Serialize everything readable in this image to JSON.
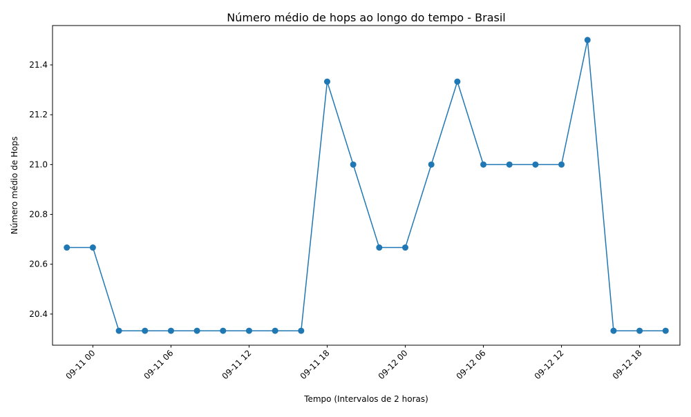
{
  "chart_data": {
    "type": "line",
    "title": "Número médio de hops ao longo do tempo - Brasil",
    "xlabel": "Tempo (Intervalos de 2 horas)",
    "ylabel": "Número médio de Hops",
    "x": [
      "2023-09-10 22:00",
      "2023-09-11 00:00",
      "2023-09-11 02:00",
      "2023-09-11 04:00",
      "2023-09-11 06:00",
      "2023-09-11 08:00",
      "2023-09-11 10:00",
      "2023-09-11 12:00",
      "2023-09-11 14:00",
      "2023-09-11 16:00",
      "2023-09-11 18:00",
      "2023-09-11 20:00",
      "2023-09-11 22:00",
      "2023-09-12 00:00",
      "2023-09-12 02:00",
      "2023-09-12 04:00",
      "2023-09-12 06:00",
      "2023-09-12 08:00",
      "2023-09-12 10:00",
      "2023-09-12 12:00",
      "2023-09-12 14:00",
      "2023-09-12 16:00",
      "2023-09-12 18:00",
      "2023-09-12 20:00"
    ],
    "series": [
      {
        "values": [
          20.667,
          20.667,
          20.333,
          20.333,
          20.333,
          20.333,
          20.333,
          20.333,
          20.333,
          20.333,
          21.333,
          21.0,
          20.667,
          20.667,
          21.0,
          21.333,
          21.0,
          21.0,
          21.0,
          21.0,
          21.5,
          20.333,
          20.333,
          20.333
        ],
        "color": "#1f77b4"
      }
    ],
    "xlim": [
      "2023-09-10 20:54",
      "2023-09-12 21:06"
    ],
    "ylim": [
      20.275,
      21.558
    ],
    "x_ticks": [
      {
        "value": "2023-09-11 00:00",
        "label": "09-11 00"
      },
      {
        "value": "2023-09-11 06:00",
        "label": "09-11 06"
      },
      {
        "value": "2023-09-11 12:00",
        "label": "09-11 12"
      },
      {
        "value": "2023-09-11 18:00",
        "label": "09-11 18"
      },
      {
        "value": "2023-09-12 00:00",
        "label": "09-12 00"
      },
      {
        "value": "2023-09-12 06:00",
        "label": "09-12 06"
      },
      {
        "value": "2023-09-12 12:00",
        "label": "09-12 12"
      },
      {
        "value": "2023-09-12 18:00",
        "label": "09-12 18"
      }
    ],
    "y_ticks": [
      {
        "value": 20.4,
        "label": "20.4"
      },
      {
        "value": 20.6,
        "label": "20.6"
      },
      {
        "value": 20.8,
        "label": "20.8"
      },
      {
        "value": 21.0,
        "label": "21.0"
      },
      {
        "value": 21.2,
        "label": "21.2"
      },
      {
        "value": 21.4,
        "label": "21.4"
      }
    ],
    "grid": false,
    "marker": "circle"
  }
}
